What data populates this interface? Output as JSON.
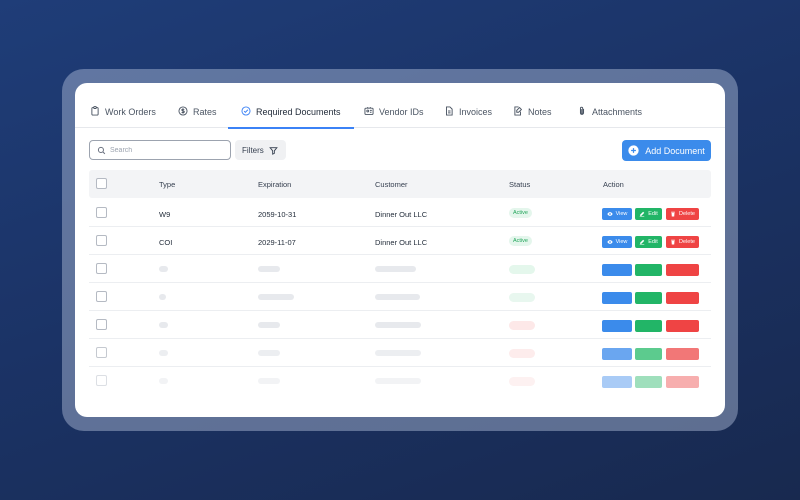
{
  "tabs": [
    {
      "label": "Work Orders",
      "icon": "clipboard-icon"
    },
    {
      "label": "Rates",
      "icon": "dollar-circle-icon"
    },
    {
      "label": "Required Documents",
      "icon": "check-circle-icon",
      "active": true
    },
    {
      "label": "Vendor IDs",
      "icon": "id-card-icon"
    },
    {
      "label": "Invoices",
      "icon": "file-text-icon"
    },
    {
      "label": "Notes",
      "icon": "note-edit-icon"
    },
    {
      "label": "Attachments",
      "icon": "paperclip-icon"
    }
  ],
  "toolbar": {
    "search_placeholder": "Search",
    "search_value": "",
    "filters_label": "Filters",
    "add_document_label": "Add Document"
  },
  "table": {
    "columns": [
      "Type",
      "Expiration",
      "Customer",
      "Status",
      "Action"
    ],
    "rows": [
      {
        "type": "W9",
        "expiration": "2059-10-31",
        "customer": "Dinner Out LLC",
        "status": "Active"
      },
      {
        "type": "COI",
        "expiration": "2029-11-07",
        "customer": "Dinner Out LLC",
        "status": "Active"
      }
    ],
    "actions": {
      "view": "View",
      "edit": "Edit",
      "delete": "Delete"
    }
  },
  "colors": {
    "accent": "#3b8beb",
    "success": "#22b567",
    "danger": "#ef4444",
    "active_badge_bg": "#e4f6ec",
    "active_badge_text": "#22a55a"
  }
}
